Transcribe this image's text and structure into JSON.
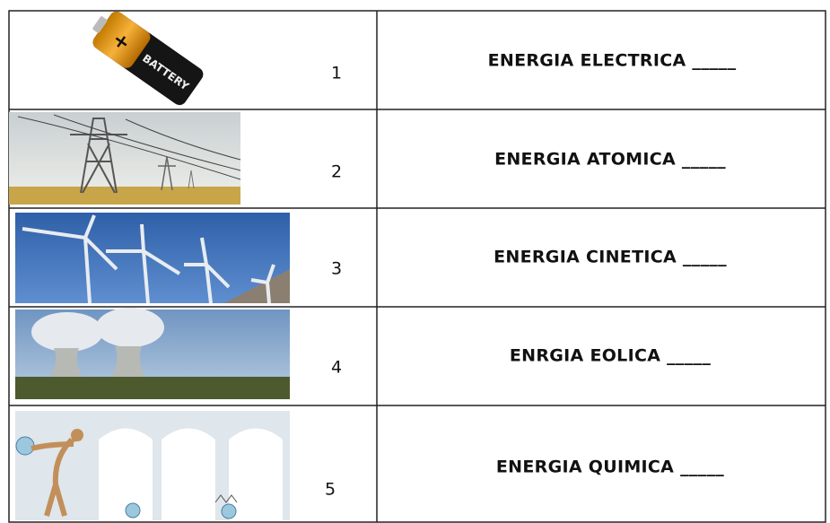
{
  "table": {
    "rows": [
      {
        "number": "1",
        "label": "ENERGIA ELECTRICA _____",
        "image_text": "BATTERY"
      },
      {
        "number": "2",
        "label": "ENERGIA ATOMICA _____"
      },
      {
        "number": "3",
        "label": "ENERGIA CINETICA _____"
      },
      {
        "number": "4",
        "label": "ENRGIA EOLICA _____"
      },
      {
        "number": "5",
        "label": "ENERGIA QUIMICA _____"
      }
    ]
  }
}
